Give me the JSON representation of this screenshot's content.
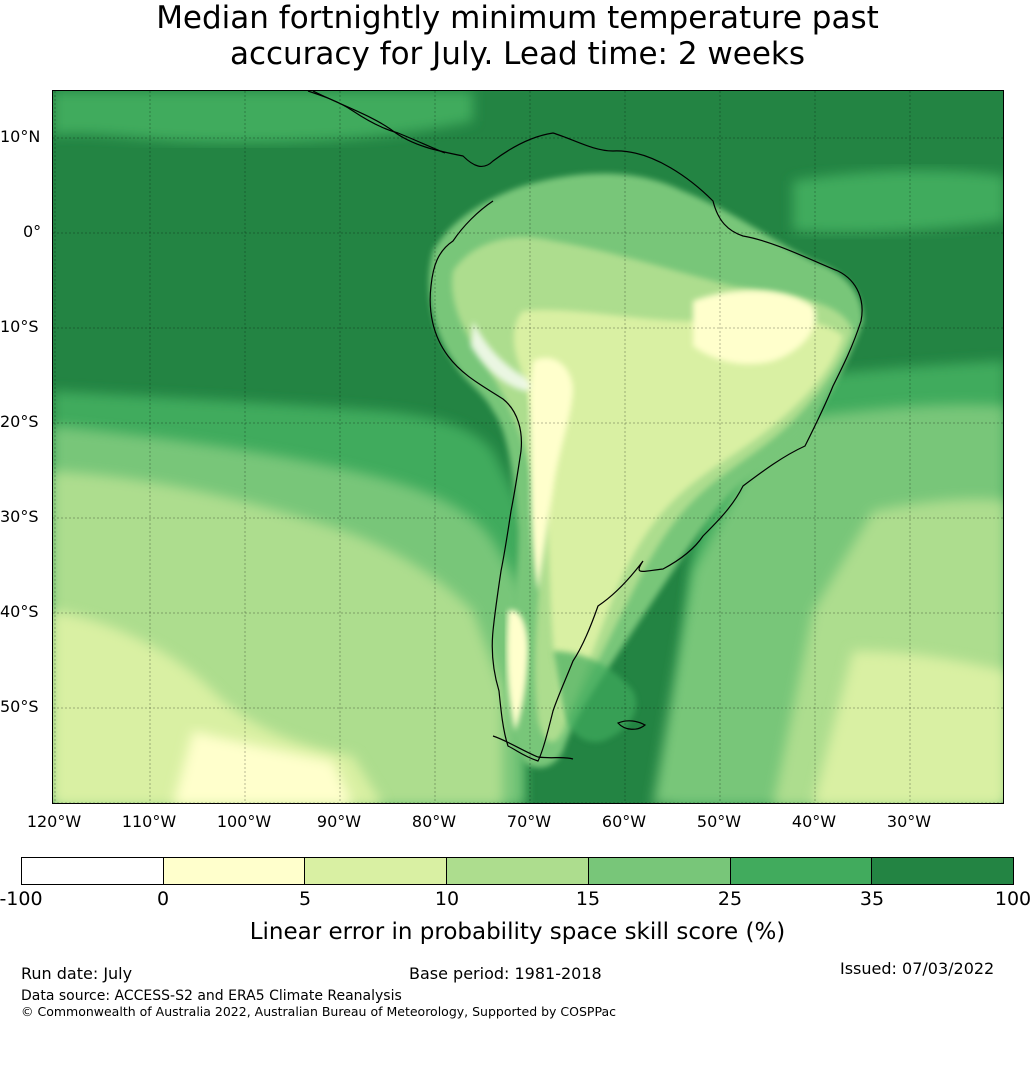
{
  "title": {
    "line1": "Median fortnightly minimum temperature past",
    "line2": "accuracy for July. Lead time: 2 weeks"
  },
  "map": {
    "lat_labels": [
      "10°N",
      "0°",
      "10°S",
      "20°S",
      "30°S",
      "40°S",
      "50°S"
    ],
    "lon_labels": [
      "120°W",
      "110°W",
      "100°W",
      "90°W",
      "80°W",
      "70°W",
      "60°W",
      "50°W",
      "40°W",
      "30°W"
    ],
    "extent": {
      "lon_min": -125,
      "lon_max": -25,
      "lat_min": -60,
      "lat_max": 15
    }
  },
  "colorbar": {
    "ticks": [
      "-100",
      "0",
      "5",
      "10",
      "15",
      "25",
      "35",
      "100"
    ],
    "colors": [
      "#ffffff",
      "#ffffcc",
      "#d9f0a3",
      "#addd8e",
      "#78c679",
      "#41ab5d",
      "#238443"
    ],
    "label": "Linear error in probability space skill score (%)"
  },
  "footer": {
    "run_date": "Run date: July",
    "base_period": "Base period: 1981-2018",
    "issued": "Issued: 07/03/2022",
    "data_source": "Data source: ACCESS-S2 and ERA5 Climate Reanalysis",
    "copyright": "© Commonwealth of Australia 2022, Australian Bureau of Meteorology, Supported by COSPPac"
  }
}
